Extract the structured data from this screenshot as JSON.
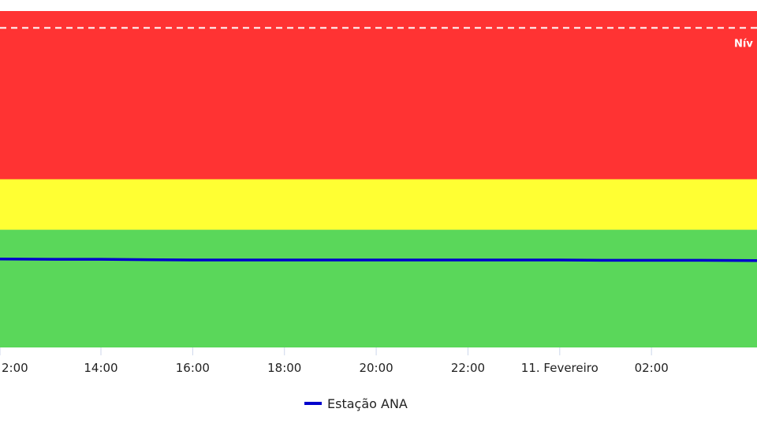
{
  "chart_data": {
    "type": "line",
    "title": "",
    "xlabel": "",
    "ylabel": "",
    "x_ticks": [
      "2:00",
      "14:00",
      "16:00",
      "18:00",
      "20:00",
      "22:00",
      "11. Fevereiro",
      "02:00"
    ],
    "x_range_hours": [
      11.8,
      28.3
    ],
    "ylim": [
      0,
      100
    ],
    "grid": false,
    "legend_position": "bottom-center",
    "bands": [
      {
        "name": "green",
        "from": 0,
        "to": 35,
        "color": "#5ad75a"
      },
      {
        "name": "yellow",
        "from": 35,
        "to": 50,
        "color": "#ffff33"
      },
      {
        "name": "red",
        "from": 50,
        "to": 100,
        "color": "#ff3333"
      }
    ],
    "reference_line": {
      "label": "Nív",
      "value": 95,
      "color": "#ffffff",
      "style": "dashed"
    },
    "series": [
      {
        "name": "Estação ANA",
        "color": "#0000cc",
        "x": [
          11.8,
          13.0,
          14.0,
          15.0,
          16.0,
          17.0,
          18.0,
          19.0,
          20.0,
          21.0,
          22.0,
          23.0,
          24.0,
          25.0,
          26.0,
          27.0,
          28.3
        ],
        "values": [
          26.3,
          26.2,
          26.2,
          26.1,
          26.0,
          26.0,
          26.0,
          26.0,
          26.0,
          26.0,
          26.0,
          26.0,
          26.0,
          25.9,
          25.9,
          25.9,
          25.8
        ]
      }
    ]
  }
}
